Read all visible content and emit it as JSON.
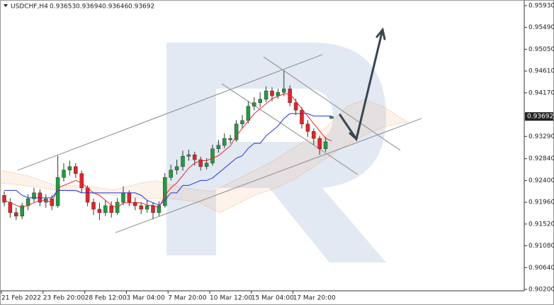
{
  "chart_data": {
    "type": "candlestick",
    "title": "USDCHF,H4",
    "categories": [
      "21 Feb 2022",
      null,
      null,
      null,
      null,
      null,
      null,
      "23 Feb 20:00",
      null,
      null,
      null,
      null,
      null,
      null,
      "28 Feb 12:00",
      null,
      null,
      null,
      null,
      null,
      null,
      "3 Mar 04:00",
      null,
      null,
      null,
      null,
      null,
      null,
      "7 Mar 20:00",
      null,
      null,
      null,
      null,
      null,
      null,
      "10 Mar 12:00",
      null,
      null,
      null,
      null,
      null,
      null,
      "15 Mar 04:00",
      null,
      null,
      null,
      null,
      null,
      null,
      "17 Mar 20:00",
      null,
      null,
      null,
      null,
      null,
      null
    ],
    "open": [
      0.921,
      0.9196,
      0.9175,
      0.9168,
      0.9189,
      0.9203,
      0.9215,
      0.9196,
      0.9203,
      0.9189,
      0.9246,
      0.9261,
      0.9268,
      0.9254,
      0.9225,
      0.9196,
      0.9182,
      0.9175,
      0.9189,
      0.9175,
      0.9196,
      0.9215,
      0.9196,
      0.9189,
      0.9182,
      0.9189,
      0.9175,
      0.9189,
      0.9246,
      0.9261,
      0.9268,
      0.9289,
      0.9292,
      0.9282,
      0.9268,
      0.9275,
      0.9304,
      0.9311,
      0.9322,
      0.9322,
      0.9354,
      0.9361,
      0.939,
      0.9397,
      0.9404,
      0.9421,
      0.9411,
      0.9418,
      0.9425,
      0.9397,
      0.9382,
      0.9354,
      0.9339,
      0.9325,
      0.9304,
      0.93653
    ],
    "high": [
      0.9218,
      0.9204,
      0.9185,
      0.9195,
      0.9212,
      0.9225,
      0.9222,
      0.9212,
      0.921,
      0.929,
      0.9275,
      0.928,
      0.9275,
      0.926,
      0.923,
      0.9203,
      0.9195,
      0.92,
      0.9198,
      0.9205,
      0.9228,
      0.922,
      0.9205,
      0.9196,
      0.92,
      0.9196,
      0.9198,
      0.9255,
      0.9272,
      0.9282,
      0.93,
      0.9302,
      0.9298,
      0.9288,
      0.9285,
      0.9312,
      0.9322,
      0.9335,
      0.9332,
      0.9362,
      0.9372,
      0.94,
      0.9408,
      0.9418,
      0.943,
      0.9428,
      0.9425,
      0.9462,
      0.9432,
      0.9405,
      0.9388,
      0.9362,
      0.9345,
      0.933,
      0.9328,
      0.93694
    ],
    "low": [
      0.9188,
      0.9165,
      0.916,
      0.9162,
      0.918,
      0.9196,
      0.9188,
      0.9185,
      0.918,
      0.9185,
      0.9238,
      0.925,
      0.9245,
      0.9215,
      0.9188,
      0.917,
      0.916,
      0.9168,
      0.9165,
      0.917,
      0.919,
      0.9188,
      0.918,
      0.9172,
      0.9175,
      0.9162,
      0.9168,
      0.9185,
      0.924,
      0.9252,
      0.926,
      0.928,
      0.927,
      0.926,
      0.9262,
      0.927,
      0.9296,
      0.9305,
      0.9315,
      0.9318,
      0.9345,
      0.9355,
      0.9382,
      0.9388,
      0.9398,
      0.94,
      0.9405,
      0.941,
      0.939,
      0.9372,
      0.9345,
      0.9328,
      0.9312,
      0.9292,
      0.9298,
      0.93646
    ],
    "close": [
      0.9196,
      0.9175,
      0.9168,
      0.9189,
      0.9203,
      0.9215,
      0.9196,
      0.9203,
      0.9189,
      0.9246,
      0.9261,
      0.9268,
      0.9254,
      0.9225,
      0.9196,
      0.9182,
      0.9175,
      0.9189,
      0.9175,
      0.9196,
      0.9215,
      0.9196,
      0.9189,
      0.9182,
      0.9189,
      0.9175,
      0.9189,
      0.9246,
      0.9261,
      0.9268,
      0.9289,
      0.9292,
      0.9282,
      0.9268,
      0.9275,
      0.9304,
      0.9311,
      0.9325,
      0.9325,
      0.9354,
      0.9361,
      0.939,
      0.9397,
      0.9404,
      0.9421,
      0.9411,
      0.9418,
      0.9425,
      0.9397,
      0.9382,
      0.9354,
      0.9339,
      0.9325,
      0.9304,
      0.9318,
      0.93692
    ],
    "up_color": "#1e9e3e",
    "down_color": "#e3232a",
    "series": [
      {
        "color": "#e8262b",
        "values": [
          0.92,
          0.9195,
          0.919,
          0.9185,
          0.919,
          0.9195,
          0.92,
          0.92,
          0.9195,
          0.9225,
          0.923,
          0.9235,
          0.924,
          0.9235,
          0.9225,
          0.9215,
          0.921,
          0.92,
          0.919,
          0.9185,
          0.9195,
          0.9195,
          0.9195,
          0.9195,
          0.919,
          0.919,
          0.9185,
          0.921,
          0.9225,
          0.9235,
          0.925,
          0.9265,
          0.9275,
          0.928,
          0.928,
          0.9285,
          0.929,
          0.93,
          0.931,
          0.933,
          0.9345,
          0.936,
          0.9375,
          0.9385,
          0.9395,
          0.9405,
          0.941,
          0.9415,
          0.9415,
          0.94,
          0.9385,
          0.937,
          0.9355,
          0.934,
          0.9325,
          0.932
        ]
      },
      {
        "color": "#2233dd",
        "values": [
          0.922,
          0.922,
          0.922,
          0.921,
          0.9205,
          0.9205,
          0.9205,
          0.9205,
          0.9205,
          0.922,
          0.922,
          0.922,
          0.922,
          0.9215,
          0.9215,
          0.9215,
          0.9215,
          0.9215,
          0.9215,
          0.9215,
          0.9215,
          0.9215,
          0.9215,
          0.921,
          0.92,
          0.9195,
          0.919,
          0.92,
          0.9215,
          0.9215,
          0.923,
          0.923,
          0.9235,
          0.924,
          0.924,
          0.9245,
          0.9255,
          0.9265,
          0.9275,
          0.9285,
          0.929,
          0.9305,
          0.9315,
          0.9315,
          0.933,
          0.934,
          0.935,
          0.9365,
          0.9375,
          0.9375,
          0.9375,
          0.9375,
          0.937,
          0.937,
          0.937,
          0.937
        ]
      }
    ],
    "ylim": [
      0.902,
      0.9593
    ],
    "yticks": [
      {
        "value": 0.9593,
        "label": "0.95930"
      },
      {
        "value": 0.9549,
        "label": "0.95490"
      },
      {
        "value": 0.9505,
        "label": "0.95050"
      },
      {
        "value": 0.9461,
        "label": "0.94610"
      },
      {
        "value": 0.9417,
        "label": "0.94170"
      },
      {
        "value": 0.9329,
        "label": "0.93290"
      },
      {
        "value": 0.9284,
        "label": "0.92840"
      },
      {
        "value": 0.924,
        "label": "0.92400"
      },
      {
        "value": 0.9196,
        "label": "0.91960"
      },
      {
        "value": 0.9152,
        "label": "0.91520"
      },
      {
        "value": 0.9108,
        "label": "0.91080"
      },
      {
        "value": 0.9064,
        "label": "0.90640"
      },
      {
        "value": 0.902,
        "label": "0.90200"
      }
    ],
    "grid": false
  }
}
